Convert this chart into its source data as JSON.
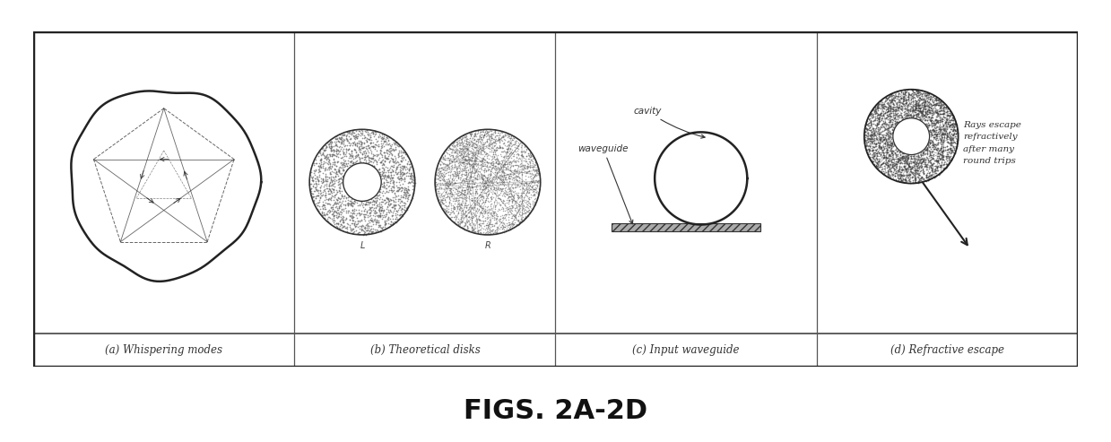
{
  "fig_width": 12.39,
  "fig_height": 4.93,
  "dpi": 100,
  "background_color": "#ffffff",
  "panel_labels": [
    "(a) Whispering modes",
    "(b) Theoretical disks",
    "(c) Input waveguide",
    "(d) Refractive escape"
  ],
  "title": "FIGS. 2A-2D",
  "title_fontsize": 22,
  "title_fontweight": "bold",
  "label_fontsize": 8.5
}
